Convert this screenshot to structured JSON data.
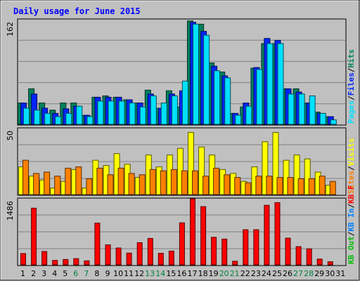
{
  "chart_data": {
    "type": "bar",
    "title": "Daily usage for June 2015",
    "colors": {
      "background": "#c0c0c0",
      "hits": "#00805c",
      "files": "#0024ff",
      "pages": "#00e0ff",
      "visits": "#ffff00",
      "sites": "#ff8000",
      "kbf": "#ff0000",
      "kbin": "#0080ff",
      "kbout": "#00c000",
      "weekend_label": "#008040",
      "weekday_label": "#000000",
      "title": "#0000ff"
    },
    "days": [
      "1",
      "2",
      "3",
      "4",
      "5",
      "6",
      "7",
      "8",
      "9",
      "10",
      "11",
      "12",
      "13",
      "14",
      "15",
      "16",
      "17",
      "18",
      "19",
      "20",
      "21",
      "22",
      "23",
      "24",
      "25",
      "26",
      "27",
      "28",
      "29",
      "30",
      "31"
    ],
    "weekend_days": [
      "6",
      "7",
      "13",
      "14",
      "20",
      "21",
      "27",
      "28"
    ],
    "panels": [
      {
        "scale_label": "162",
        "ylim": [
          0,
          162
        ],
        "legend": [
          {
            "text": "Hits",
            "color_key": "hits"
          },
          {
            "text": "Files",
            "color_key": "files"
          },
          {
            "text": "Pages",
            "color_key": "pages"
          }
        ],
        "series": [
          {
            "name": "Hits",
            "color_key": "hits",
            "values": [
              33,
              55,
              33,
              22,
              33,
              33,
              14,
              42,
              44,
              42,
              38,
              33,
              53,
              25,
              52,
              27,
              160,
              155,
              95,
              81,
              17,
              27,
              87,
              125,
              125,
              55,
              55,
              33,
              19,
              12,
              0
            ]
          },
          {
            "name": "Files",
            "color_key": "files",
            "values": [
              33,
              47,
              25,
              17,
              24,
              28,
              14,
              42,
              42,
              42,
              38,
              33,
              47,
              25,
              47,
              52,
              158,
              144,
              90,
              75,
              17,
              33,
              88,
              133,
              130,
              55,
              50,
              33,
              17,
              12,
              0
            ]
          },
          {
            "name": "Pages",
            "color_key": "pages",
            "values": [
              25,
              22,
              17,
              12,
              17,
              28,
              12,
              36,
              36,
              36,
              33,
              27,
              44,
              33,
              44,
              67,
              155,
              138,
              83,
              72,
              14,
              28,
              85,
              125,
              125,
              47,
              47,
              44,
              17,
              7,
              0
            ]
          }
        ]
      },
      {
        "scale_label": "50",
        "ylim": [
          0,
          50
        ],
        "legend": [
          {
            "text": "Visits",
            "color_key": "visits"
          },
          {
            "text": "Sites",
            "color_key": "sites"
          }
        ],
        "series": [
          {
            "name": "Visits",
            "color_key": "visits",
            "values": [
              21,
              14,
              11,
              5,
              10,
              19,
              5,
              26,
              22,
              31,
              23,
              13,
              30,
              21,
              30,
              35,
              47,
              36,
              30,
              19,
              16,
              10,
              21,
              40,
              47,
              26,
              30,
              27,
              17,
              7,
              0
            ]
          },
          {
            "name": "Sites",
            "color_key": "sites",
            "values": [
              26,
              16,
              17,
              14,
              20,
              21,
              12,
              20,
              15,
              20,
              16,
              15,
              19,
              18,
              19,
              18,
              18,
              14,
              20,
              15,
              13,
              9,
              14,
              14,
              13,
              13,
              12,
              12,
              14,
              10,
              0
            ]
          }
        ]
      },
      {
        "scale_label": "1486",
        "ylim": [
          0,
          1486
        ],
        "legend": [
          {
            "text": "KB F",
            "color_key": "kbf"
          },
          {
            "text": "KB In",
            "color_key": "kbin"
          },
          {
            "text": "KB Out",
            "color_key": "kbout"
          }
        ],
        "series": [
          {
            "name": "KB F",
            "color_key": "kbf",
            "values": [
              255,
              1275,
              300,
              100,
              120,
              140,
              90,
              940,
              450,
              380,
              265,
              500,
              595,
              260,
              310,
              945,
              1486,
              1310,
              620,
              580,
              80,
              790,
              790,
              1340,
              1400,
              600,
              410,
              360,
              130,
              70,
              0
            ]
          }
        ]
      }
    ]
  }
}
